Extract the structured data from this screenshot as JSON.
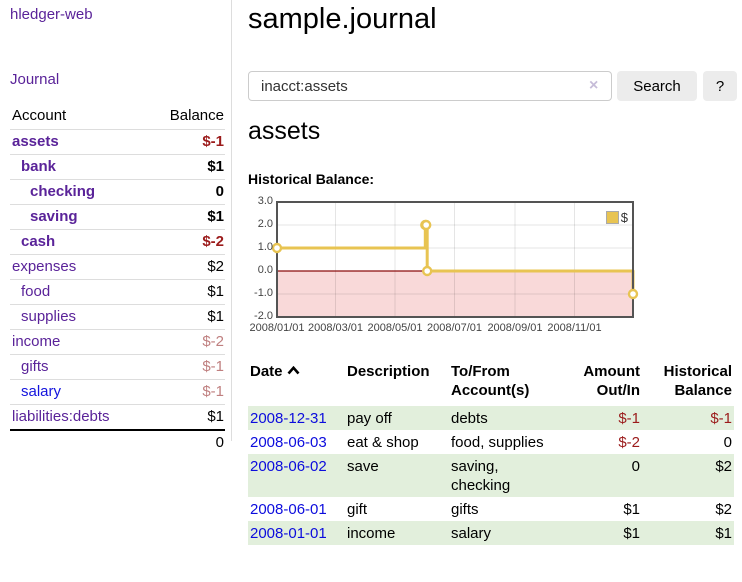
{
  "sidebar": {
    "brand": "hledger-web",
    "journal_link": "Journal",
    "accounts_table": {
      "headers": {
        "account": "Account",
        "balance": "Balance"
      },
      "rows": [
        {
          "name": "assets",
          "depth": 1,
          "active": true,
          "balance": "$-1"
        },
        {
          "name": "bank",
          "depth": 2,
          "active": true,
          "balance": "$1"
        },
        {
          "name": "checking",
          "depth": 3,
          "active": true,
          "balance": "0"
        },
        {
          "name": "saving",
          "depth": 3,
          "active": true,
          "balance": "$1"
        },
        {
          "name": "cash",
          "depth": 2,
          "active": true,
          "balance": "$-2"
        },
        {
          "name": "expenses",
          "depth": 1,
          "active": false,
          "balance": "$2"
        },
        {
          "name": "food",
          "depth": 2,
          "active": false,
          "balance": "$1"
        },
        {
          "name": "supplies",
          "depth": 2,
          "active": false,
          "balance": "$1"
        },
        {
          "name": "income",
          "depth": 1,
          "active": false,
          "balance": "$-2"
        },
        {
          "name": "gifts",
          "depth": 2,
          "active": false,
          "balance": "$-1"
        },
        {
          "name": "salary",
          "depth": 2,
          "active": false,
          "balance": "$-1",
          "visited": false
        },
        {
          "name": "liabilities:debts",
          "depth": 1,
          "active": false,
          "balance": "$1"
        }
      ],
      "total": "0"
    }
  },
  "header": {
    "title": "sample.journal"
  },
  "search": {
    "value": "inacct:assets",
    "clear_icon": "×",
    "search_label": "Search",
    "help_label": "?"
  },
  "register": {
    "heading": "assets",
    "chart_label": "Historical Balance:",
    "table": {
      "headers": {
        "date": "Date",
        "description": "Description",
        "accounts": "To/From Account(s)",
        "amount": "Amount Out/In",
        "balance": "Historical Balance"
      },
      "rows": [
        {
          "date": "2008-12-31",
          "description": "pay off",
          "accounts": "debts",
          "amount": "$-1",
          "balance": "$-1"
        },
        {
          "date": "2008-06-03",
          "description": "eat & shop",
          "accounts": "food, supplies",
          "amount": "$-2",
          "balance": "0"
        },
        {
          "date": "2008-06-02",
          "description": "save",
          "accounts": "saving, checking",
          "amount": "0",
          "balance": "$2"
        },
        {
          "date": "2008-06-01",
          "description": "gift",
          "accounts": "gifts",
          "amount": "$1",
          "balance": "$2"
        },
        {
          "date": "2008-01-01",
          "description": "income",
          "accounts": "salary",
          "amount": "$1",
          "balance": "$1"
        }
      ]
    }
  },
  "chart_data": {
    "type": "line",
    "interpolation": "step",
    "title": "Historical Balance",
    "legend": [
      {
        "label": "$",
        "color": "#e8c452"
      }
    ],
    "legend_position": "top-right",
    "grid": true,
    "x_range": [
      "2008-01-01",
      "2008-12-31"
    ],
    "x_tick_labels": [
      "2008/01/01",
      "2008/03/01",
      "2008/05/01",
      "2008/07/01",
      "2008/09/01",
      "2008/11/01"
    ],
    "x_tick_dates": [
      "2008-01-01",
      "2008-03-01",
      "2008-05-01",
      "2008-07-01",
      "2008-09-01",
      "2008-11-01"
    ],
    "y_tick_labels": [
      "3.0",
      "2.0",
      "1.0",
      "0.0",
      "-1.0",
      "-2.0"
    ],
    "ylim": [
      -2,
      3
    ],
    "series": [
      {
        "name": "$",
        "points": [
          [
            "2008-01-01",
            1
          ],
          [
            "2008-06-01",
            2
          ],
          [
            "2008-06-02",
            2
          ],
          [
            "2008-06-03",
            0
          ],
          [
            "2008-12-31",
            -1
          ]
        ]
      }
    ],
    "colors": {
      "line": "#e8c452",
      "marker_fill": "#ffffff",
      "zero_line": "#8c0d0d",
      "negative_region": "#f9d9d9",
      "border": "#545454",
      "gridline": "rgba(0,0,0,0.10)"
    }
  },
  "colors": {
    "link_purple": "#5a2399",
    "link_blue": "#1414dd",
    "negative_strong": "#9b1b1b",
    "negative_faded": "#bf7f7f",
    "row_shade_green": "#e2efdc"
  }
}
